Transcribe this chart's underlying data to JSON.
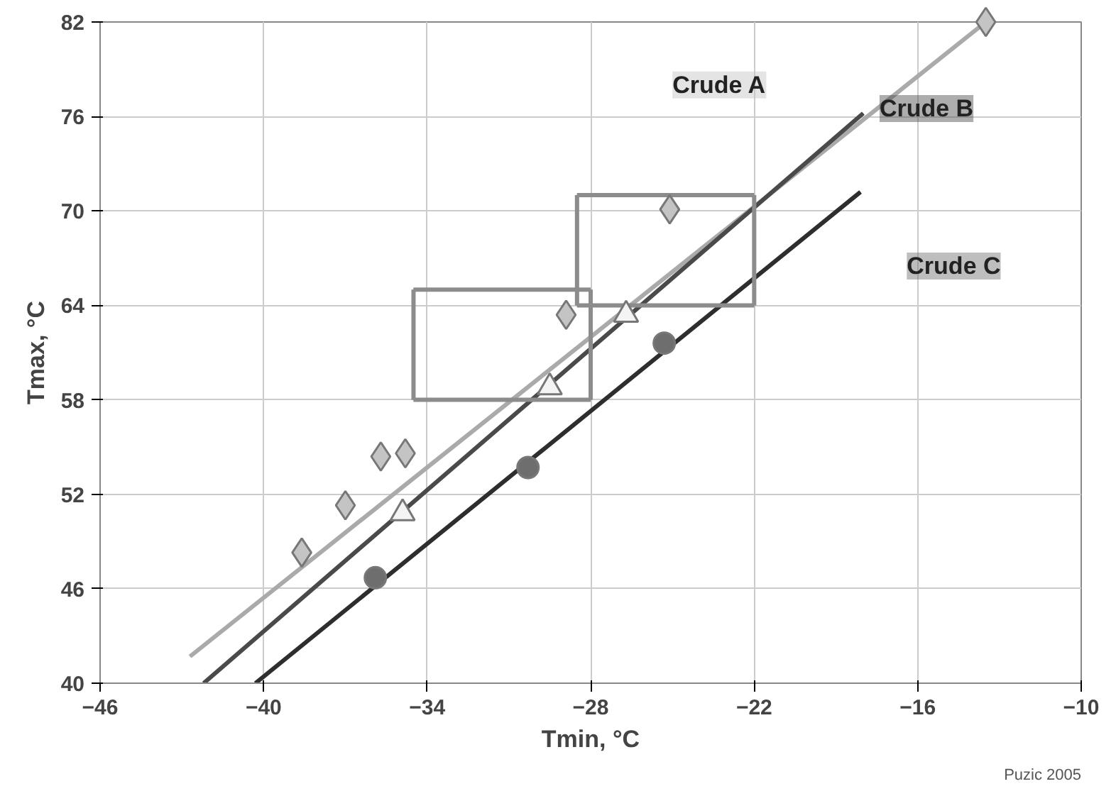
{
  "chart_data": {
    "type": "scatter",
    "xlabel": "Tmin, °C",
    "ylabel": "Tmax, °C",
    "xlim": [
      -46,
      -10
    ],
    "xticks": [
      -46,
      -40,
      -34,
      -28,
      -22,
      -16,
      -10
    ],
    "ylim": [
      40,
      82
    ],
    "yticks": [
      40,
      46,
      52,
      58,
      64,
      70,
      76,
      82
    ],
    "grid": true,
    "legend": false,
    "line_style": "solid",
    "series": [
      {
        "name": "Crude A",
        "marker": "diamond",
        "color": "#c4c4c4",
        "x": [
          -38.6,
          -37.0,
          -35.7,
          -34.8,
          -28.9,
          -25.1,
          -13.5
        ],
        "values": [
          48.3,
          51.3,
          54.4,
          54.6,
          63.4,
          70.1,
          82
        ]
      },
      {
        "marker": "triangle",
        "color": "#f4f4f4",
        "x": [
          -34.9,
          -29.5,
          -26.7
        ],
        "values": [
          50.8,
          58.8,
          63.4
        ]
      },
      {
        "name": "Crude C",
        "marker": "circle",
        "color": "#6e6e6e",
        "x": [
          -35.9,
          -30.3,
          -25.3
        ],
        "values": [
          46.7,
          53.7,
          61.6
        ]
      },
      {
        "type": "line",
        "color": "#aaaaaa",
        "x": [
          -42.7,
          -13.5
        ],
        "values": [
          41.7,
          82
        ]
      },
      {
        "name": "Crude B",
        "type": "line",
        "color": "#4a4a4a",
        "x": [
          -42.2,
          -18.0
        ],
        "values": [
          40,
          76.2
        ]
      },
      {
        "type": "line",
        "color": "#2e2e2e",
        "x": [
          -40.3,
          -18.1
        ],
        "values": [
          40,
          71.2
        ]
      },
      {
        "type": "line",
        "color": "#8c8c8c",
        "x": [
          -34.5,
          -28.0
        ],
        "values": [
          58,
          58
        ]
      },
      {
        "type": "line",
        "color": "#8c8c8c",
        "x": [
          -34.5,
          -28.0
        ],
        "values": [
          65,
          65
        ]
      },
      {
        "type": "line",
        "color": "#8c8c8c",
        "x": [
          -34.5,
          -34.5
        ],
        "values": [
          58,
          65
        ]
      },
      {
        "type": "line",
        "color": "#8c8c8c",
        "x": [
          -28.0,
          -28.0
        ],
        "values": [
          58,
          65
        ]
      },
      {
        "type": "line",
        "color": "#8c8c8c",
        "x": [
          -28.5,
          -22.0
        ],
        "values": [
          64,
          64
        ]
      },
      {
        "type": "line",
        "color": "#8c8c8c",
        "x": [
          -28.5,
          -22.0
        ],
        "values": [
          71,
          71
        ]
      },
      {
        "type": "line",
        "color": "#8c8c8c",
        "x": [
          -28.5,
          -28.5
        ],
        "values": [
          64,
          71
        ]
      },
      {
        "type": "line",
        "color": "#8c8c8c",
        "x": [
          -22.0,
          -22.0
        ],
        "values": [
          64,
          71
        ]
      }
    ],
    "annotations": [
      "Puzic 2005"
    ]
  }
}
